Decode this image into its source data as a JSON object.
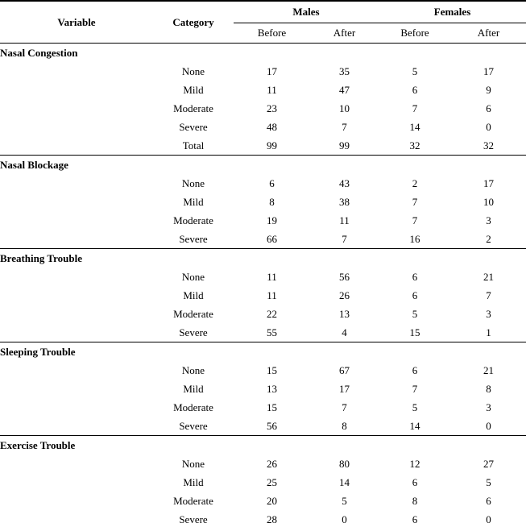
{
  "table": {
    "headers": {
      "variable": "Variable",
      "category": "Category",
      "males": "Males",
      "females": "Females",
      "before": "Before",
      "after": "After"
    },
    "groups": [
      {
        "variable": "Nasal Congestion",
        "rows": [
          {
            "category": "None",
            "values": [
              "17",
              "35",
              "5",
              "17"
            ]
          },
          {
            "category": "Mild",
            "values": [
              "11",
              "47",
              "6",
              "9"
            ]
          },
          {
            "category": "Moderate",
            "values": [
              "23",
              "10",
              "7",
              "6"
            ]
          },
          {
            "category": "Severe",
            "values": [
              "48",
              "7",
              "14",
              "0"
            ]
          },
          {
            "category": "Total",
            "values": [
              "99",
              "99",
              "32",
              "32"
            ]
          }
        ]
      },
      {
        "variable": "Nasal Blockage",
        "rows": [
          {
            "category": "None",
            "values": [
              "6",
              "43",
              "2",
              "17"
            ]
          },
          {
            "category": "Mild",
            "values": [
              "8",
              "38",
              "7",
              "10"
            ]
          },
          {
            "category": "Moderate",
            "values": [
              "19",
              "11",
              "7",
              "3"
            ]
          },
          {
            "category": "Severe",
            "values": [
              "66",
              "7",
              "16",
              "2"
            ]
          }
        ]
      },
      {
        "variable": "Breathing Trouble",
        "rows": [
          {
            "category": "None",
            "values": [
              "11",
              "56",
              "6",
              "21"
            ]
          },
          {
            "category": "Mild",
            "values": [
              "11",
              "26",
              "6",
              "7"
            ]
          },
          {
            "category": "Moderate",
            "values": [
              "22",
              "13",
              "5",
              "3"
            ]
          },
          {
            "category": "Severe",
            "values": [
              "55",
              "4",
              "15",
              "1"
            ]
          }
        ]
      },
      {
        "variable": "Sleeping Trouble",
        "rows": [
          {
            "category": "None",
            "values": [
              "15",
              "67",
              "6",
              "21"
            ]
          },
          {
            "category": "Mild",
            "values": [
              "13",
              "17",
              "7",
              "8"
            ]
          },
          {
            "category": "Moderate",
            "values": [
              "15",
              "7",
              "5",
              "3"
            ]
          },
          {
            "category": "Severe",
            "values": [
              "56",
              "8",
              "14",
              "0"
            ]
          }
        ]
      },
      {
        "variable": "Exercise Trouble",
        "rows": [
          {
            "category": "None",
            "values": [
              "26",
              "80",
              "12",
              "27"
            ]
          },
          {
            "category": "Mild",
            "values": [
              "25",
              "14",
              "6",
              "5"
            ]
          },
          {
            "category": "Moderate",
            "values": [
              "20",
              "5",
              "8",
              "6"
            ]
          },
          {
            "category": "Severe",
            "values": [
              "28",
              "0",
              "6",
              "0"
            ]
          }
        ]
      }
    ]
  }
}
